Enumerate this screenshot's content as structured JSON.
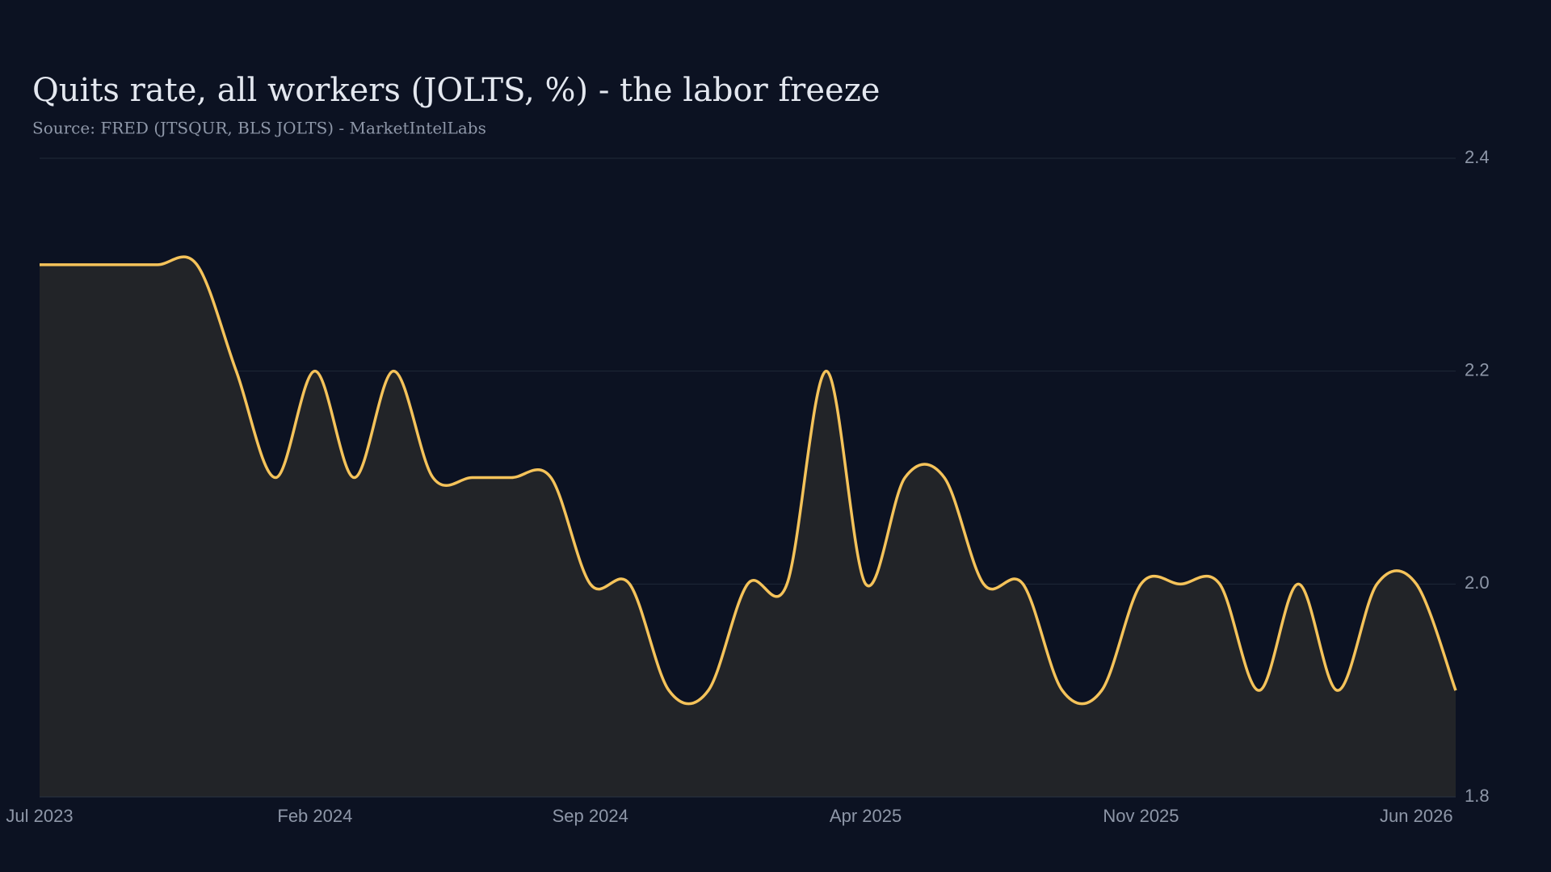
{
  "chart_data": {
    "type": "area",
    "title": "Quits rate, all workers (JOLTS, %) - the labor freeze",
    "subtitle": "Source: FRED (JTSQUR, BLS JOLTS) - MarketIntelLabs",
    "categories": [
      "Jul 2023",
      null,
      null,
      null,
      null,
      null,
      null,
      "Feb 2024",
      null,
      null,
      null,
      null,
      null,
      null,
      "Sep 2024",
      null,
      null,
      null,
      null,
      null,
      null,
      "Apr 2025",
      null,
      null,
      null,
      null,
      null,
      null,
      "Nov 2025",
      null,
      null,
      null,
      null,
      null,
      null,
      "Jun 2026",
      null
    ],
    "values": [
      2.3,
      2.3,
      2.3,
      2.3,
      2.3,
      2.2,
      2.1,
      2.2,
      2.1,
      2.2,
      2.1,
      2.1,
      2.1,
      2.1,
      2.0,
      2.0,
      1.9,
      1.9,
      2.0,
      2.0,
      2.2,
      2.0,
      2.1,
      2.1,
      2.0,
      2.0,
      1.9,
      1.9,
      2.0,
      2.0,
      2.0,
      1.9,
      2.0,
      1.9,
      2.0,
      2.0,
      1.9
    ],
    "color": "#f5c35a",
    "fill_color": "#222428",
    "ylim": [
      1.8,
      2.4
    ],
    "yticks": [
      {
        "value": 1.8,
        "label": "1.8"
      },
      {
        "value": 2,
        "label": "2.0"
      },
      2.2,
      2.4
    ],
    "grid": true
  }
}
